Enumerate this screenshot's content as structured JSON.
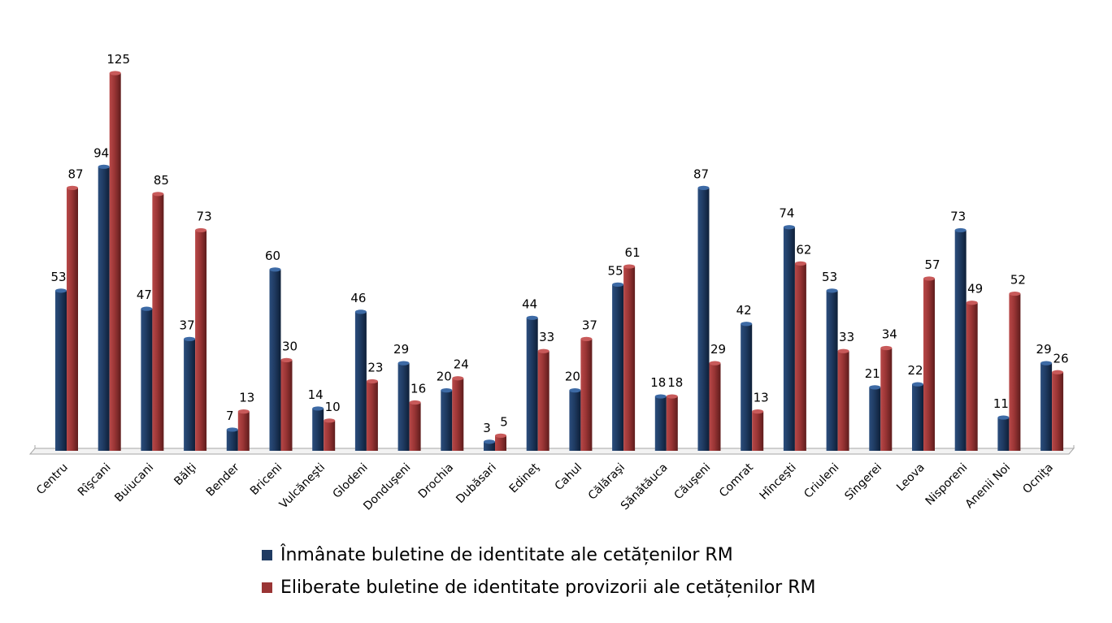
{
  "chart_data": {
    "type": "bar",
    "categories": [
      "Centru",
      "Rîşcani",
      "Buiucani",
      "Bălţi",
      "Bender",
      "Briceni",
      "Vulcăneşti",
      "Glodeni",
      "Donduşeni",
      "Drochia",
      "Dubăsari",
      "Edineţ",
      "Cahul",
      "Călăraşi",
      "Sănătăuca",
      "Căuşeni",
      "Comrat",
      "Hînceşti",
      "Criuleni",
      "Sîngerei",
      "Leova",
      "Nisporeni",
      "Anenii Noi",
      "Ocniţa"
    ],
    "series": [
      {
        "name": "Înmânate buletine de identitate ale cetățenilor RM",
        "color": "#1f3b62",
        "values": [
          53,
          94,
          47,
          37,
          7,
          60,
          14,
          46,
          29,
          20,
          3,
          44,
          20,
          55,
          18,
          87,
          42,
          74,
          53,
          21,
          22,
          73,
          11,
          29
        ]
      },
      {
        "name": "Eliberate buletine de identitate provizorii ale cetățenilor RM",
        "color": "#9a3535",
        "values": [
          87,
          125,
          85,
          73,
          13,
          30,
          10,
          23,
          16,
          24,
          5,
          33,
          37,
          61,
          18,
          29,
          13,
          62,
          33,
          34,
          57,
          49,
          52,
          26
        ]
      }
    ],
    "ylim": [
      0,
      125
    ],
    "grid": false,
    "legend_position": "bottom"
  }
}
